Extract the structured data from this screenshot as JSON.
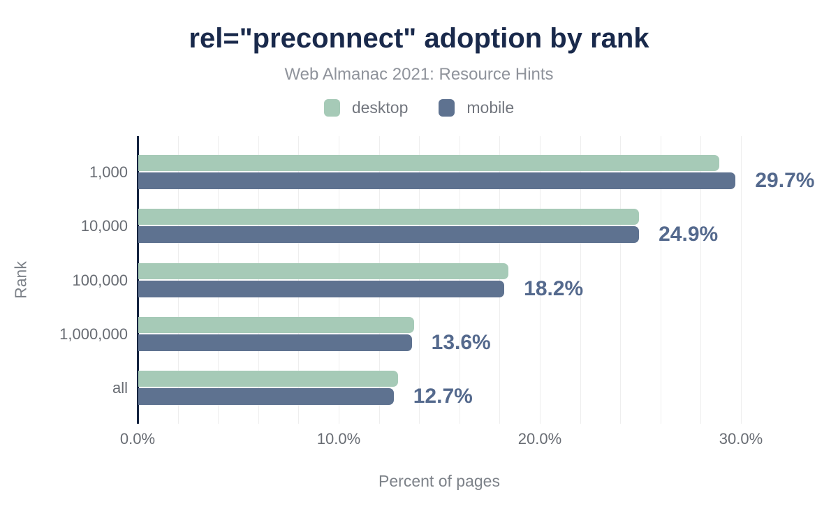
{
  "header": {
    "title": "rel=\"preconnect\" adoption by rank",
    "subtitle": "Web Almanac 2021: Resource Hints"
  },
  "legend": {
    "items": [
      {
        "label": "desktop",
        "color": "#a6cab7"
      },
      {
        "label": "mobile",
        "color": "#5e7290"
      }
    ]
  },
  "chart_data": {
    "type": "bar",
    "orientation": "horizontal",
    "title": "rel=\"preconnect\" adoption by rank",
    "subtitle": "Web Almanac 2021: Resource Hints",
    "categories": [
      "1,000",
      "10,000",
      "100,000",
      "1,000,000",
      "all"
    ],
    "series": [
      {
        "name": "desktop",
        "color": "#a6cab7",
        "values": [
          28.9,
          24.9,
          18.4,
          13.7,
          12.9
        ]
      },
      {
        "name": "mobile",
        "color": "#5e7290",
        "values": [
          29.7,
          24.9,
          18.2,
          13.6,
          12.7
        ]
      }
    ],
    "bar_labels": [
      "29.7%",
      "24.9%",
      "18.2%",
      "13.6%",
      "12.7%"
    ],
    "bar_label_series": "mobile",
    "xlabel": "Percent of pages",
    "ylabel": "Rank",
    "xlim": [
      0,
      30
    ],
    "x_ticks": [
      {
        "label": "0.0%",
        "value": 0
      },
      {
        "label": "10.0%",
        "value": 10
      },
      {
        "label": "20.0%",
        "value": 20
      },
      {
        "label": "30.0%",
        "value": 30
      }
    ],
    "grid": {
      "vertical_step_percent": 2,
      "color": "#eeeeee"
    },
    "legend_position": "top"
  },
  "colors": {
    "background": "#ffffff",
    "title_text": "#19294b",
    "subtitle_text": "#8f939b",
    "desktop_bar": "#a6cab7",
    "mobile_bar": "#5e7290",
    "value_label_text": "#54698d",
    "axis_line": "#152440",
    "gridline": "#eeeeee",
    "tick_text": "#686c73",
    "axis_title_text": "#7d8289",
    "legend_text": "#72767e"
  }
}
